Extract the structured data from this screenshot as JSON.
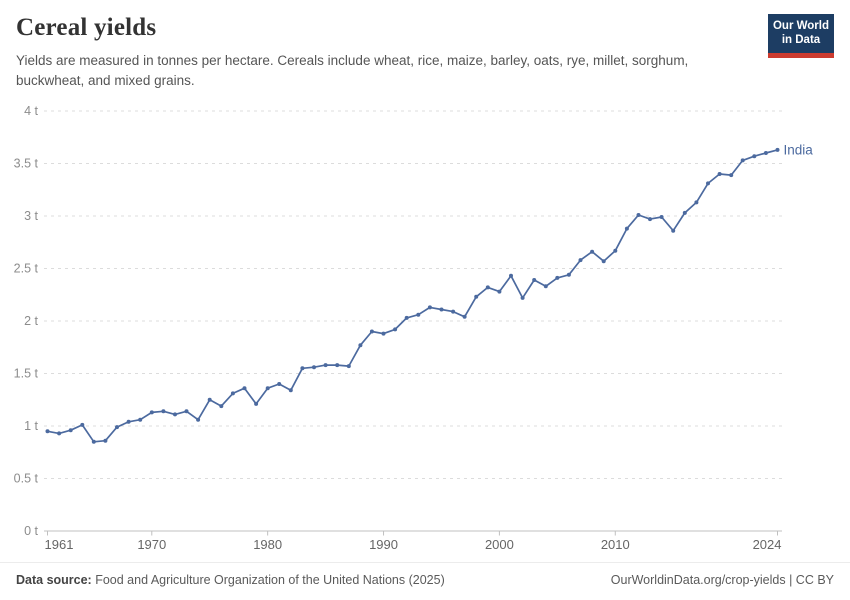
{
  "header": {
    "title": "Cereal yields",
    "subtitle": "Yields are measured in tonnes per hectare. Cereals include wheat, rice, maize, barley, oats, rye, millet, sorghum, buckwheat, and mixed grains.",
    "logo": {
      "line1": "Our World",
      "line2": "in Data",
      "bg_color": "#1d3d63",
      "bar_color": "#cc3b2f"
    }
  },
  "chart_data": {
    "type": "line",
    "title": "Cereal yields",
    "xlabel": "",
    "ylabel": "tonnes per hectare",
    "unit": "t",
    "grid": true,
    "legend_position": "end-of-line",
    "line_color": "#4c6a9f",
    "axis_color": "#c0c0c0",
    "grid_color": "#dcdcdc",
    "ytick_color": "#8c8c8c",
    "xtick_color": "#666666",
    "ylim": [
      0,
      4
    ],
    "x_range": [
      1961,
      2024
    ],
    "xticks": [
      1961,
      1970,
      1980,
      1990,
      2000,
      2010,
      2024
    ],
    "yticks": [
      {
        "value": 0,
        "label": "0 t"
      },
      {
        "value": 0.5,
        "label": "0.5 t"
      },
      {
        "value": 1,
        "label": "1 t"
      },
      {
        "value": 1.5,
        "label": "1.5 t"
      },
      {
        "value": 2,
        "label": "2 t"
      },
      {
        "value": 2.5,
        "label": "2.5 t"
      },
      {
        "value": 3,
        "label": "3 t"
      },
      {
        "value": 3.5,
        "label": "3.5 t"
      },
      {
        "value": 4,
        "label": "4 t"
      }
    ],
    "x": [
      1961,
      1962,
      1963,
      1964,
      1965,
      1966,
      1967,
      1968,
      1969,
      1970,
      1971,
      1972,
      1973,
      1974,
      1975,
      1976,
      1977,
      1978,
      1979,
      1980,
      1981,
      1982,
      1983,
      1984,
      1985,
      1986,
      1987,
      1988,
      1989,
      1990,
      1991,
      1992,
      1993,
      1994,
      1995,
      1996,
      1997,
      1998,
      1999,
      2000,
      2001,
      2002,
      2003,
      2004,
      2005,
      2006,
      2007,
      2008,
      2009,
      2010,
      2011,
      2012,
      2013,
      2014,
      2015,
      2016,
      2017,
      2018,
      2019,
      2020,
      2021,
      2022,
      2023,
      2024
    ],
    "series": [
      {
        "name": "India",
        "values": [
          0.95,
          0.93,
          0.96,
          1.01,
          0.85,
          0.86,
          0.99,
          1.04,
          1.06,
          1.13,
          1.14,
          1.11,
          1.14,
          1.06,
          1.25,
          1.19,
          1.31,
          1.36,
          1.21,
          1.36,
          1.4,
          1.34,
          1.55,
          1.56,
          1.58,
          1.58,
          1.57,
          1.77,
          1.9,
          1.88,
          1.92,
          2.03,
          2.06,
          2.13,
          2.11,
          2.09,
          2.04,
          2.23,
          2.32,
          2.28,
          2.43,
          2.22,
          2.39,
          2.33,
          2.41,
          2.44,
          2.58,
          2.66,
          2.57,
          2.67,
          2.88,
          3.01,
          2.97,
          2.99,
          2.86,
          3.03,
          3.13,
          3.31,
          3.4,
          3.39,
          3.53,
          3.57,
          3.6,
          3.63
        ]
      }
    ]
  },
  "footer": {
    "source_label": "Data source:",
    "source_text": "Food and Agriculture Organization of the United Nations (2025)",
    "right_text": "OurWorldinData.org/crop-yields | CC BY"
  }
}
